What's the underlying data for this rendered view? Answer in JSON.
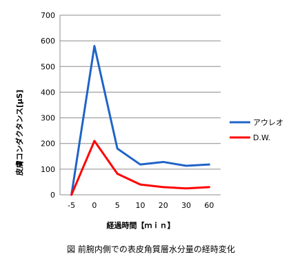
{
  "caption": "図  前腕内側での表皮角質層水分量の経時変化",
  "chart_data": {
    "type": "line",
    "categories": [
      "-5",
      "0",
      "5",
      "10",
      "20",
      "30",
      "60"
    ],
    "series": [
      {
        "name": "アウレオ",
        "color": "#1f63c6",
        "values": [
          0,
          580,
          180,
          118,
          128,
          113,
          118
        ]
      },
      {
        "name": "D.W.",
        "color": "#ff0000",
        "values": [
          0,
          210,
          82,
          40,
          30,
          25,
          30
        ]
      }
    ],
    "ylim": [
      0,
      700
    ],
    "yticks": [
      0,
      100,
      200,
      300,
      400,
      500,
      600,
      700
    ],
    "xlabel": "経過時間【ｍｉｎ】",
    "ylabel": "皮膚コンダクタンス[μS]",
    "grid": "horizontal",
    "legend_position": "right"
  }
}
